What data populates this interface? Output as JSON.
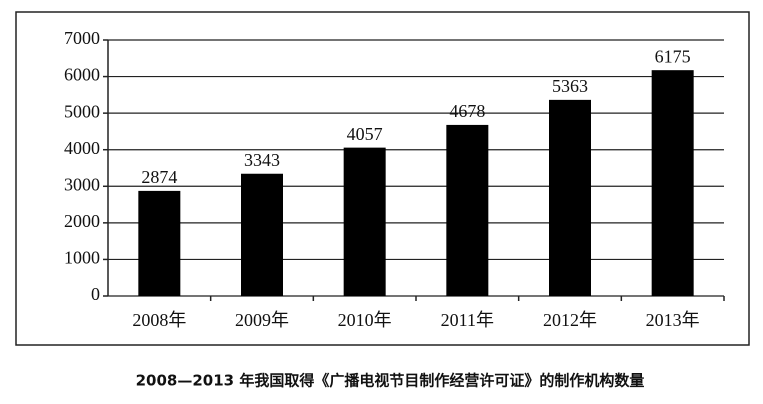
{
  "chart_data": {
    "type": "bar",
    "caption": "2008—2013 年我国取得《广播电视节目制作经营许可证》的制作机构数量",
    "categories": [
      "2008年",
      "2009年",
      "2010年",
      "2011年",
      "2012年",
      "2013年"
    ],
    "values": [
      2874,
      3343,
      4057,
      4678,
      5363,
      6175
    ],
    "color": "#000000",
    "ylim": [
      0,
      7000
    ],
    "yticks": [
      0,
      1000,
      2000,
      3000,
      4000,
      5000,
      6000,
      7000
    ],
    "grid": true
  }
}
